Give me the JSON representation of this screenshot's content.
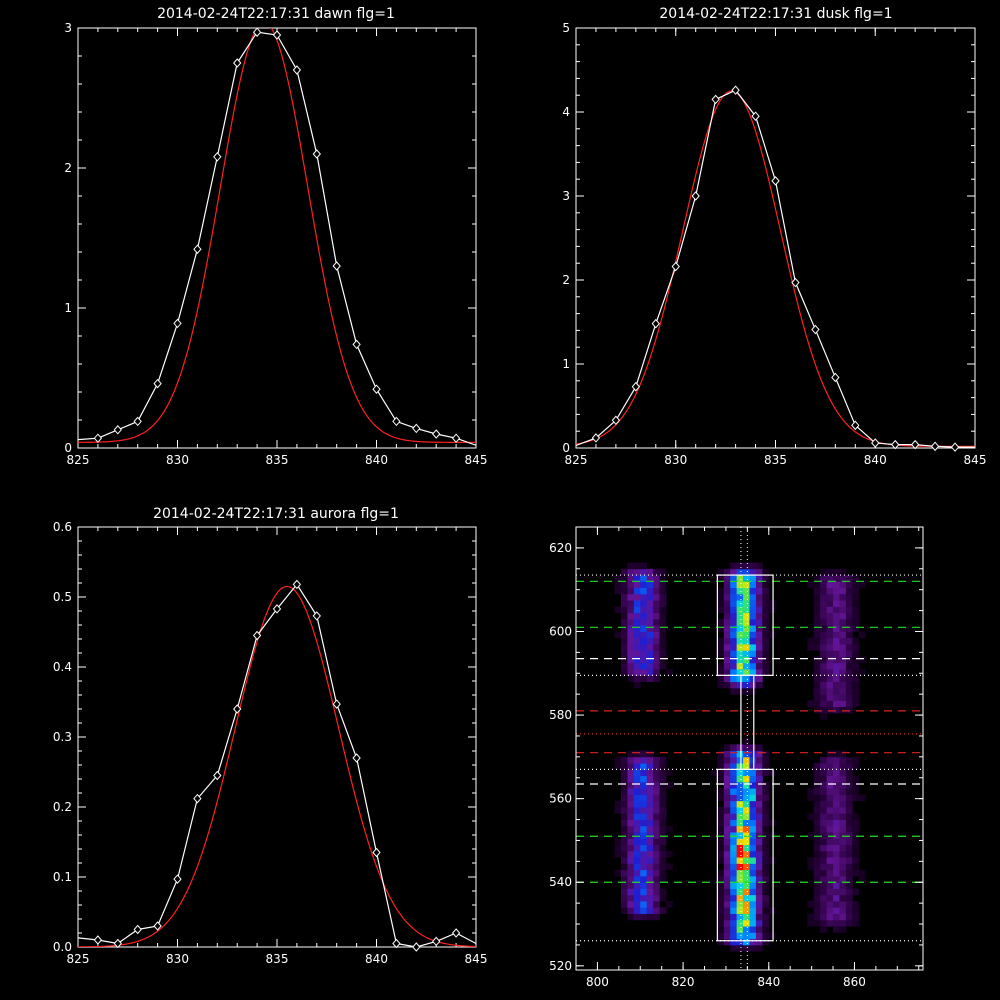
{
  "colors": {
    "background": "#000000",
    "axes": "#ffffff",
    "data_line": "#ffffff",
    "fit_line": "#ff2020",
    "green_dash": "#22dd22",
    "red_dash": "#dd2222",
    "white_dash": "#ffffff"
  },
  "chart_data": [
    {
      "type": "line",
      "title": "2014-02-24T22:17:31 dawn flg=1",
      "xlim": [
        825,
        845
      ],
      "ylim": [
        0,
        3
      ],
      "xticks": [
        "825",
        "830",
        "835",
        "840",
        "845"
      ],
      "yticks": [
        "0",
        "1",
        "2",
        "3"
      ],
      "series": [
        {
          "marker": "diamond",
          "x": [
            825,
            826,
            827,
            828,
            829,
            830,
            831,
            832,
            833,
            834,
            835,
            836,
            837,
            838,
            839,
            840,
            841,
            842,
            843,
            844,
            845
          ],
          "y": [
            0.06,
            0.07,
            0.13,
            0.19,
            0.46,
            0.89,
            1.42,
            2.08,
            2.75,
            2.97,
            2.95,
            2.7,
            2.1,
            1.3,
            0.74,
            0.42,
            0.19,
            0.14,
            0.1,
            0.07,
            0.02
          ]
        },
        {
          "marker": "none",
          "fit": "gaussian",
          "amplitude": 3.0,
          "center": 834.35,
          "sigma": 2.2,
          "offset": 0.04,
          "x_range": [
            825,
            845
          ]
        }
      ]
    },
    {
      "type": "line",
      "title": "2014-02-24T22:17:31 dusk flg=1",
      "xlim": [
        825,
        845
      ],
      "ylim": [
        0,
        5
      ],
      "xticks": [
        "825",
        "830",
        "835",
        "840",
        "845"
      ],
      "yticks": [
        "0",
        "1",
        "2",
        "3",
        "4",
        "5"
      ],
      "series": [
        {
          "marker": "diamond",
          "x": [
            825,
            826,
            827,
            828,
            829,
            830,
            831,
            832,
            833,
            834,
            835,
            836,
            837,
            838,
            839,
            840,
            841,
            842,
            843,
            844,
            845
          ],
          "y": [
            0.03,
            0.12,
            0.33,
            0.73,
            1.48,
            2.16,
            3.0,
            4.15,
            4.26,
            3.95,
            3.18,
            1.97,
            1.41,
            0.84,
            0.27,
            0.06,
            0.04,
            0.04,
            0.02,
            0.01,
            0.01
          ]
        },
        {
          "marker": "none",
          "fit": "gaussian",
          "amplitude": 4.23,
          "center": 832.8,
          "sigma": 2.45,
          "offset": 0.02,
          "x_range": [
            825,
            845
          ]
        }
      ]
    },
    {
      "type": "line",
      "title": "2014-02-24T22:17:31 aurora flg=1",
      "xlim": [
        825,
        845
      ],
      "ylim": [
        0,
        0.6
      ],
      "xticks": [
        "825",
        "830",
        "835",
        "840",
        "845"
      ],
      "yticks": [
        "0.0",
        "0.1",
        "0.2",
        "0.3",
        "0.4",
        "0.5",
        "0.6"
      ],
      "series": [
        {
          "marker": "diamond",
          "x": [
            825,
            826,
            827,
            828,
            829,
            830,
            831,
            832,
            833,
            834,
            835,
            836,
            837,
            838,
            839,
            840,
            841,
            842,
            843,
            844,
            845
          ],
          "y": [
            0.013,
            0.01,
            0.005,
            0.025,
            0.03,
            0.097,
            0.212,
            0.245,
            0.34,
            0.445,
            0.483,
            0.518,
            0.473,
            0.347,
            0.27,
            0.135,
            0.005,
            0.0,
            0.008,
            0.02,
            0.005
          ]
        },
        {
          "marker": "none",
          "fit": "gaussian",
          "amplitude": 0.515,
          "center": 835.5,
          "sigma": 2.6,
          "offset": 0.0,
          "x_range": [
            825,
            845
          ]
        }
      ]
    },
    {
      "type": "heatmap",
      "title": "",
      "xlim": [
        795,
        876
      ],
      "ylim": [
        519,
        625
      ],
      "xticks": [
        "800",
        "820",
        "840",
        "860"
      ],
      "yticks": [
        "520",
        "540",
        "560",
        "580",
        "600",
        "620"
      ],
      "intensity_bands": [
        {
          "center_x": 834.2,
          "width": 2.4,
          "y_segments": [
            [
              589,
              613
            ],
            [
              527,
              570
            ]
          ],
          "peak": 1.0
        },
        {
          "center_x": 810.5,
          "width": 2.6,
          "y_segments": [
            [
              591,
              613
            ],
            [
              534,
              568
            ]
          ],
          "peak": 0.55
        },
        {
          "center_x": 855.5,
          "width": 2.8,
          "y_segments": [
            [
              583,
              612
            ],
            [
              531,
              568
            ]
          ],
          "peak": 0.3
        }
      ],
      "hot_spot": {
        "x": 833.5,
        "y": 545
      },
      "boxes": [
        {
          "x": [
            828,
            841
          ],
          "y": [
            589.5,
            613.5
          ]
        },
        {
          "x": [
            828,
            841
          ],
          "y": [
            526,
            567
          ]
        },
        {
          "x": [
            833.5,
            836.5
          ],
          "y": [
            567,
            589.5
          ]
        }
      ],
      "vertical_dotted_lines": [
        833.5,
        835
      ],
      "horizontal_lines": [
        {
          "y": 613.5,
          "style": "dotted",
          "color": "white"
        },
        {
          "y": 612,
          "style": "dashed",
          "color": "green"
        },
        {
          "y": 601,
          "style": "dashed",
          "color": "green"
        },
        {
          "y": 593.5,
          "style": "dashed",
          "color": "white"
        },
        {
          "y": 589.5,
          "style": "dotted",
          "color": "white"
        },
        {
          "y": 581,
          "style": "dashed",
          "color": "red"
        },
        {
          "y": 575.5,
          "style": "dotted",
          "color": "red"
        },
        {
          "y": 571,
          "style": "dashed",
          "color": "red"
        },
        {
          "y": 567,
          "style": "dotted",
          "color": "white"
        },
        {
          "y": 563.5,
          "style": "dashed",
          "color": "white"
        },
        {
          "y": 551,
          "style": "dashed",
          "color": "green"
        },
        {
          "y": 540,
          "style": "dashed",
          "color": "green"
        },
        {
          "y": 526,
          "style": "dotted",
          "color": "white"
        }
      ]
    }
  ]
}
